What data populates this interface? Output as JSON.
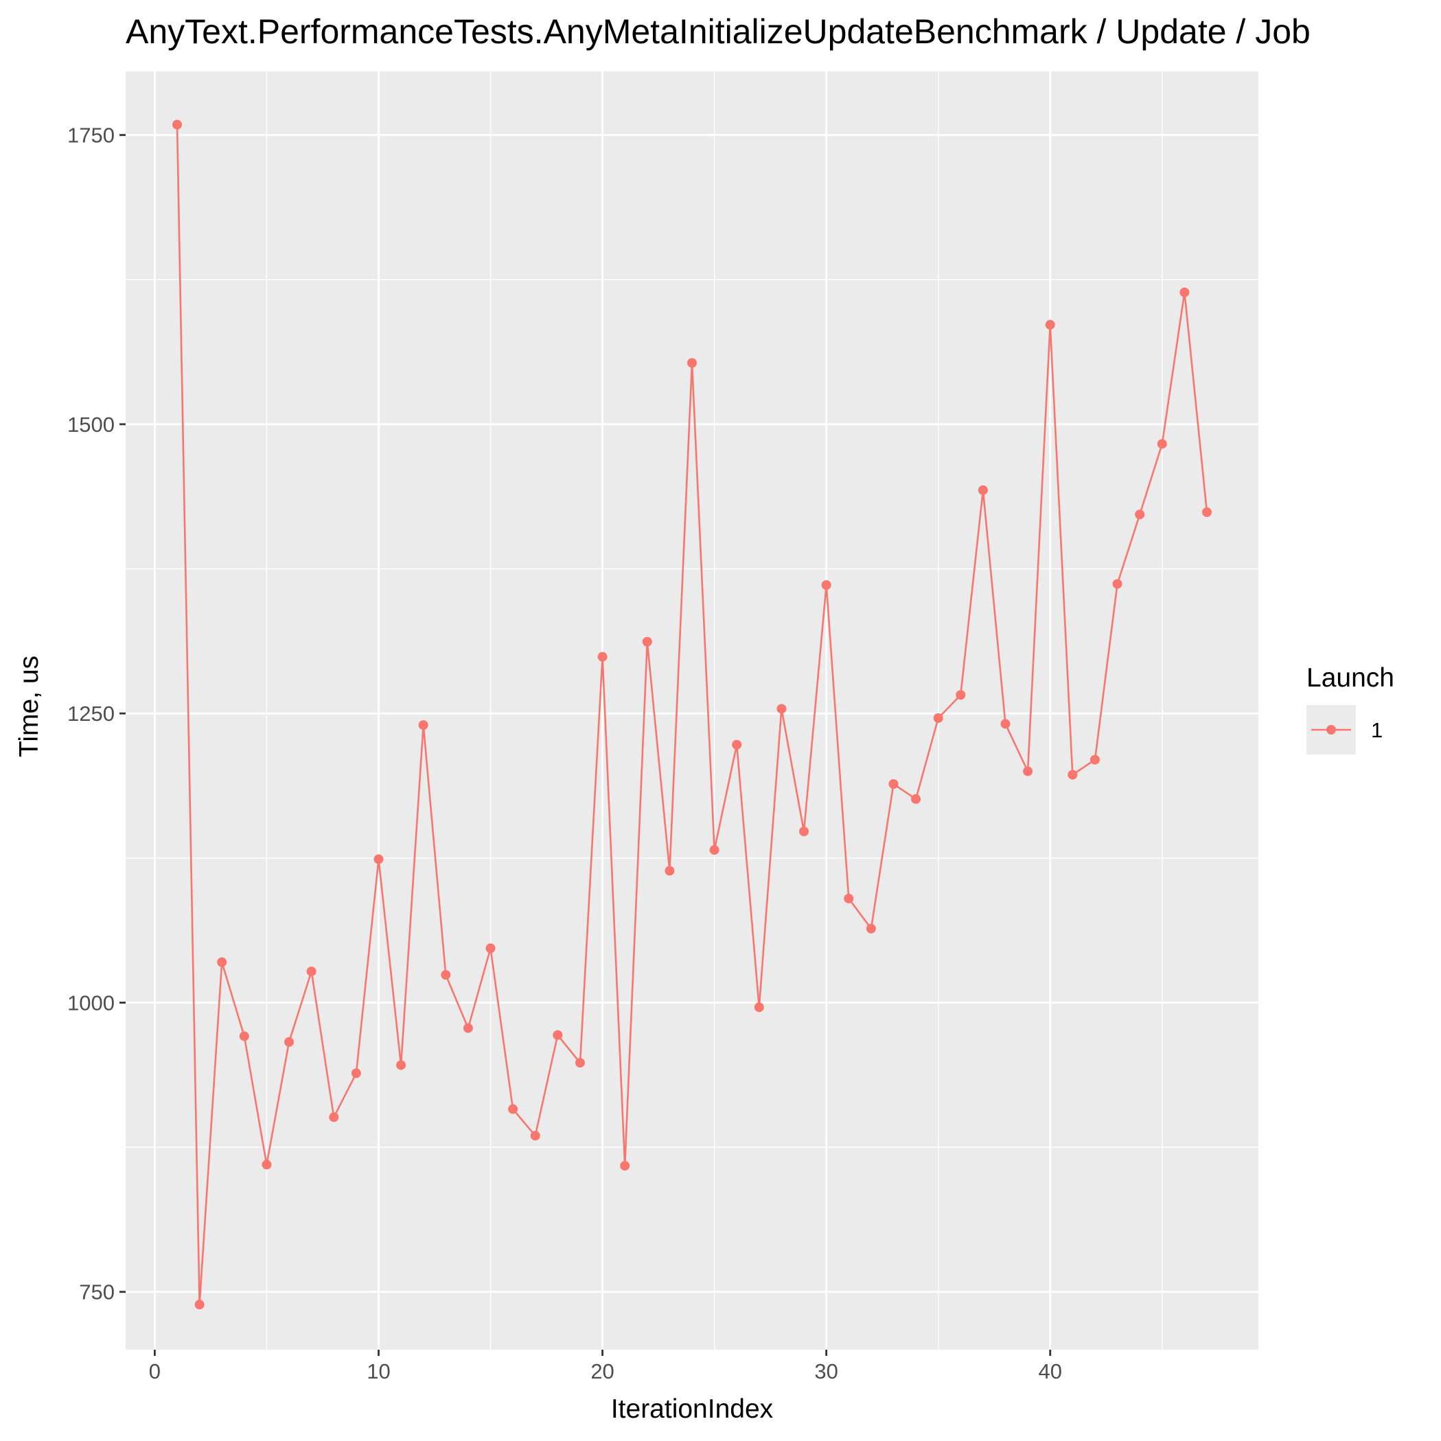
{
  "chart_data": {
    "type": "line",
    "title": "AnyText.PerformanceTests.AnyMetaInitializeUpdateBenchmark / Update / Job",
    "xlabel": "IterationIndex",
    "ylabel": "Time, us",
    "xlim": [
      -1.3,
      49.3
    ],
    "ylim": [
      700,
      1805
    ],
    "x_ticks": [
      0,
      10,
      20,
      30,
      40
    ],
    "y_ticks": [
      750,
      1000,
      1250,
      1500,
      1750
    ],
    "grid": true,
    "legend": {
      "title": "Launch",
      "position": "right"
    },
    "colors": {
      "series": "#F8766D",
      "panel": "#EBEBEB",
      "grid": "#FFFFFF"
    },
    "series": [
      {
        "name": "1",
        "x": [
          1,
          2,
          3,
          4,
          5,
          6,
          7,
          8,
          9,
          10,
          11,
          12,
          13,
          14,
          15,
          16,
          17,
          18,
          19,
          20,
          21,
          22,
          23,
          24,
          25,
          26,
          27,
          28,
          29,
          30,
          31,
          32,
          33,
          34,
          35,
          36,
          37,
          38,
          39,
          40,
          41,
          42,
          43,
          44,
          45,
          46,
          47
        ],
        "values": [
          1759,
          739,
          1035,
          971,
          860,
          966,
          1027,
          901,
          939,
          1124,
          946,
          1240,
          1024,
          978,
          1047,
          908,
          885,
          972,
          948,
          1299,
          859,
          1312,
          1114,
          1553,
          1132,
          1223,
          996,
          1254,
          1148,
          1361,
          1090,
          1064,
          1189,
          1176,
          1246,
          1266,
          1443,
          1241,
          1200,
          1586,
          1197,
          1210,
          1362,
          1422,
          1483,
          1614,
          1424
        ]
      }
    ]
  }
}
